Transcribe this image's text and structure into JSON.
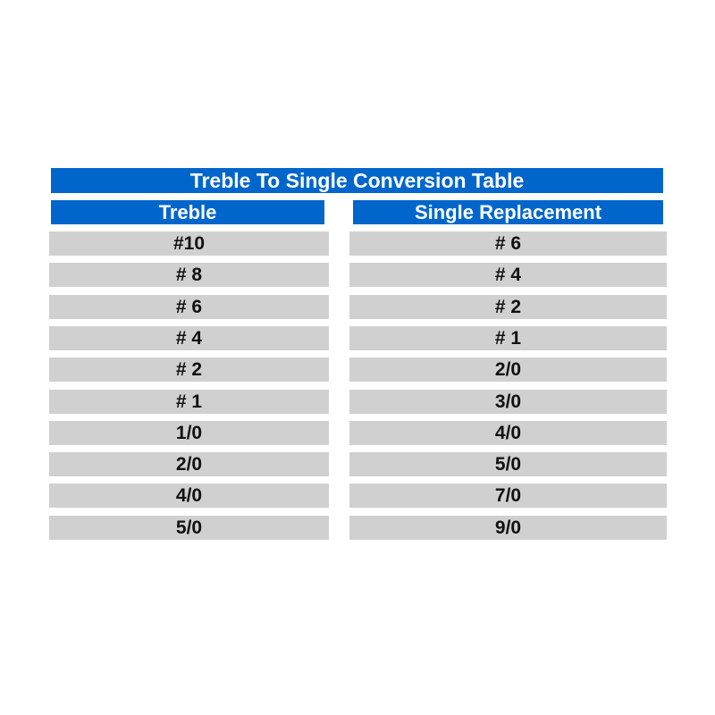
{
  "title": "Treble To Single Conversion Table",
  "colors": {
    "header": "#0066cc",
    "row": "#d0d0d0"
  },
  "columns": [
    "Treble",
    "Single Replacement"
  ],
  "rows": [
    [
      "#10",
      "# 6"
    ],
    [
      "# 8",
      "# 4"
    ],
    [
      "# 6",
      "# 2"
    ],
    [
      "# 4",
      "# 1"
    ],
    [
      "# 2",
      "2/0"
    ],
    [
      "# 1",
      "3/0"
    ],
    [
      "1/0",
      "4/0"
    ],
    [
      "2/0",
      "5/0"
    ],
    [
      "4/0",
      "7/0"
    ],
    [
      "5/0",
      "9/0"
    ]
  ]
}
